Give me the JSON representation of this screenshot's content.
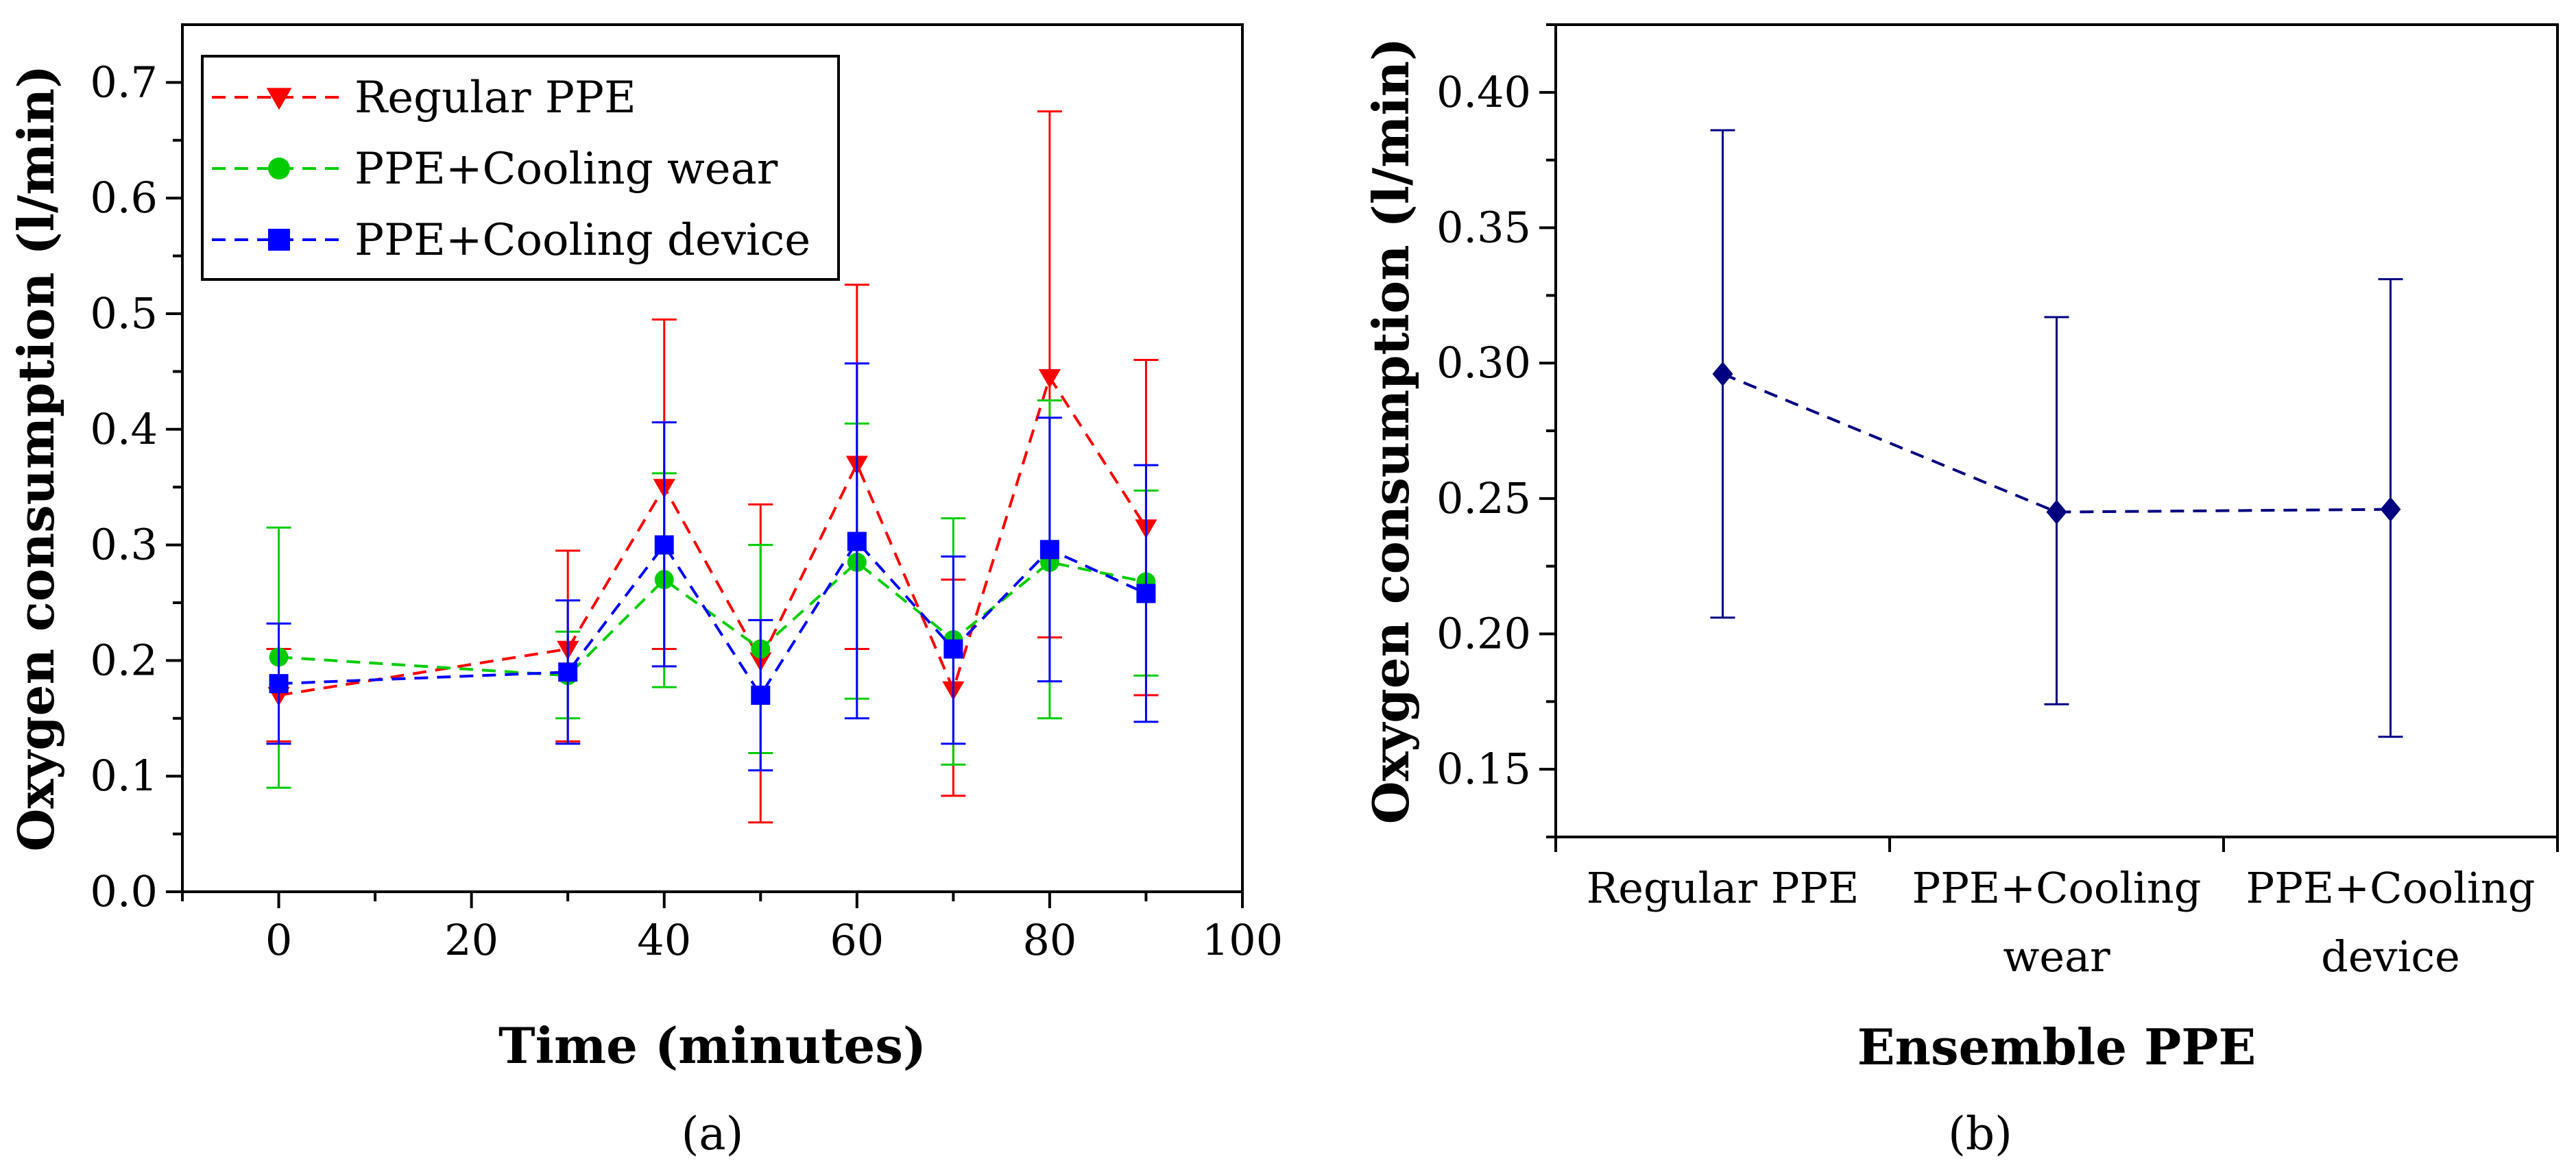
{
  "chart_data": [
    {
      "type": "line",
      "panel_label": "(a)",
      "xlabel": "Time (minutes)",
      "ylabel": "Oxygen consumption (l/min)",
      "xlim": [
        -10,
        100
      ],
      "ylim": [
        0.0,
        0.75
      ],
      "xticks": [
        0,
        20,
        40,
        60,
        80,
        100
      ],
      "xtick_labels": [
        "0",
        "20",
        "40",
        "60",
        "80",
        "100"
      ],
      "yticks": [
        0.0,
        0.1,
        0.2,
        0.3,
        0.4,
        0.5,
        0.6,
        0.7
      ],
      "ytick_labels": [
        "0.0",
        "0.1",
        "0.2",
        "0.3",
        "0.4",
        "0.5",
        "0.6",
        "0.7"
      ],
      "legend_position": "top-left",
      "grid": false,
      "x": [
        0,
        30,
        40,
        50,
        60,
        70,
        80,
        90
      ],
      "series": [
        {
          "name": "Regular PPE",
          "color": "#ff0000",
          "marker": "triangle-down",
          "values": [
            0.17,
            0.21,
            0.35,
            0.2,
            0.37,
            0.175,
            0.445,
            0.315
          ],
          "err_low": [
            0.13,
            0.13,
            0.21,
            0.06,
            0.21,
            0.083,
            0.22,
            0.17
          ],
          "err_high": [
            0.21,
            0.295,
            0.495,
            0.335,
            0.525,
            0.27,
            0.675,
            0.46
          ]
        },
        {
          "name": "PPE+Cooling wear",
          "color": "#00cc00",
          "marker": "circle",
          "values": [
            0.203,
            0.187,
            0.27,
            0.21,
            0.285,
            0.218,
            0.285,
            0.268
          ],
          "err_low": [
            0.09,
            0.15,
            0.177,
            0.12,
            0.167,
            0.11,
            0.15,
            0.187
          ],
          "err_high": [
            0.315,
            0.225,
            0.362,
            0.3,
            0.405,
            0.323,
            0.425,
            0.347
          ]
        },
        {
          "name": "PPE+Cooling device",
          "color": "#0000ff",
          "marker": "square",
          "values": [
            0.18,
            0.19,
            0.3,
            0.17,
            0.303,
            0.21,
            0.296,
            0.258
          ],
          "err_low": [
            0.128,
            0.128,
            0.195,
            0.105,
            0.15,
            0.128,
            0.182,
            0.147
          ],
          "err_high": [
            0.232,
            0.252,
            0.406,
            0.235,
            0.457,
            0.29,
            0.41,
            0.369
          ]
        }
      ]
    },
    {
      "type": "line",
      "panel_label": "(b)",
      "xlabel": "Ensemble PPE",
      "ylabel": "Oxygen consumption (l/min)",
      "ylim": [
        0.125,
        0.425
      ],
      "yticks": [
        0.15,
        0.2,
        0.25,
        0.3,
        0.35,
        0.4
      ],
      "ytick_labels": [
        "0.15",
        "0.20",
        "0.25",
        "0.30",
        "0.35",
        "0.40"
      ],
      "grid": false,
      "categories": [
        [
          "Regular PPE"
        ],
        [
          "PPE+Cooling",
          "wear"
        ],
        [
          "PPE+Cooling",
          "device"
        ]
      ],
      "series": [
        {
          "color": "#000080",
          "marker": "diamond",
          "values": [
            0.296,
            0.245,
            0.246
          ],
          "err_low": [
            0.206,
            0.174,
            0.162
          ],
          "err_high": [
            0.386,
            0.317,
            0.331
          ]
        }
      ]
    }
  ]
}
